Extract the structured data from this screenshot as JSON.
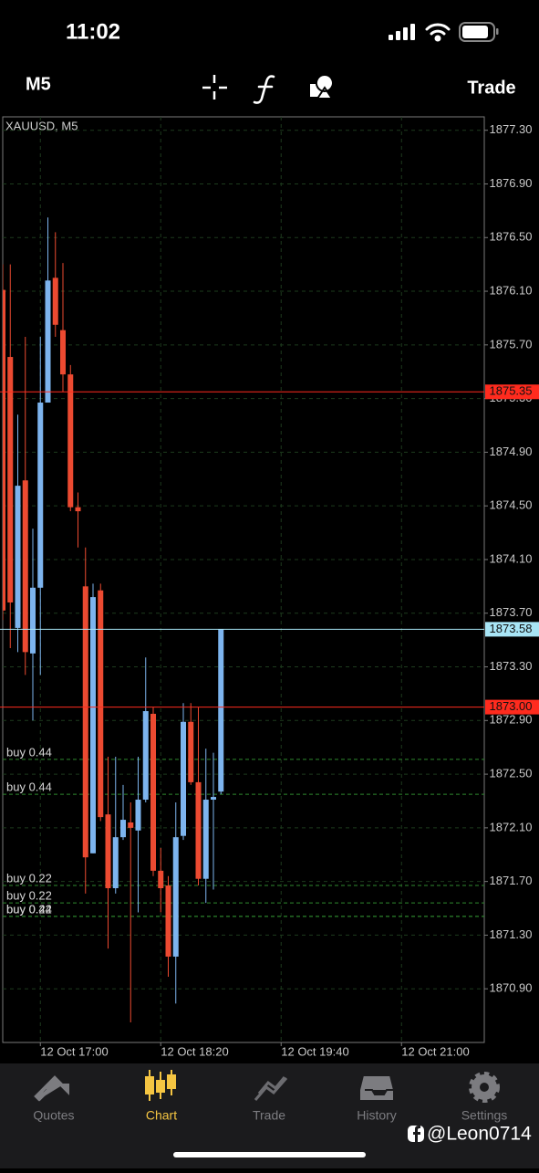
{
  "status_bar": {
    "time": "11:02"
  },
  "toolbar": {
    "timeframe": "M5",
    "trade": "Trade"
  },
  "chart_data": {
    "type": "candlestick",
    "title": "XAUUSD, M5",
    "categories": [
      null,
      null,
      null,
      null,
      null,
      "12 Oct 17:00",
      null,
      null,
      null,
      null,
      null,
      null,
      null,
      null,
      null,
      null,
      null,
      null,
      null,
      null,
      null,
      "12 Oct 18:20",
      null,
      null,
      null,
      null,
      null,
      null,
      null,
      null,
      null,
      null,
      null,
      null,
      null,
      null,
      null,
      "12 Oct 19:40",
      null,
      null,
      null,
      null,
      null,
      null,
      null,
      null,
      null,
      null,
      null,
      null,
      null,
      null,
      null,
      "12 Oct 21:00",
      null,
      null,
      null,
      null,
      null,
      null,
      null,
      null,
      null,
      null
    ],
    "open": [
      1876.11,
      1875.61,
      1873.59,
      1874.69,
      1873.4,
      1873.89,
      1875.27,
      1876.2,
      1875.81,
      1875.48,
      1874.49,
      1873.9,
      1871.91,
      1873.87,
      1872.2,
      1871.65,
      1872.03,
      1872.14,
      1872.08,
      1872.31,
      1872.95,
      1871.78,
      1871.67,
      1871.14,
      1872.04,
      1872.89,
      1872.44,
      1871.72,
      1872.31,
      1872.37,
      null,
      null,
      null,
      null,
      null,
      null,
      null,
      null,
      null,
      null,
      null,
      null,
      null,
      null,
      null,
      null,
      null,
      null,
      null,
      null,
      null,
      null,
      null,
      null,
      null,
      null,
      null,
      null,
      null,
      null,
      null,
      null,
      null,
      null
    ],
    "high": [
      1876.3,
      1876.3,
      1875.18,
      1875.76,
      1874.33,
      1875.76,
      1876.65,
      1876.54,
      1876.31,
      1875.55,
      1874.6,
      1874.19,
      1873.92,
      1873.92,
      1872.63,
      1872.63,
      1872.42,
      1872.29,
      1872.63,
      1873.37,
      1873.0,
      1871.95,
      1871.74,
      1872.29,
      1873.03,
      1873.03,
      1873.0,
      1872.69,
      1872.66,
      1873.58,
      null,
      null,
      null,
      null,
      null,
      null,
      null,
      null,
      null,
      null,
      null,
      null,
      null,
      null,
      null,
      null,
      null,
      null,
      null,
      null,
      null,
      null,
      null,
      null,
      null,
      null,
      null,
      null,
      null,
      null,
      null,
      null,
      null,
      null
    ],
    "low": [
      1873.65,
      1873.44,
      1873.41,
      1873.24,
      1872.9,
      1873.24,
      1875.27,
      1875.76,
      1875.35,
      1874.46,
      1874.19,
      1871.61,
      1871.91,
      1872.15,
      1871.2,
      1871.61,
      1872.01,
      1870.65,
      1871.47,
      1872.29,
      1871.74,
      1871.47,
      1870.99,
      1870.79,
      1872.01,
      1872.42,
      1871.67,
      1871.54,
      1871.64,
      1872.35,
      null,
      null,
      null,
      null,
      null,
      null,
      null,
      null,
      null,
      null,
      null,
      null,
      null,
      null,
      null,
      null,
      null,
      null,
      null,
      null,
      null,
      null,
      null,
      null,
      null,
      null,
      null,
      null,
      null,
      null,
      null,
      null,
      null,
      null
    ],
    "close": [
      1873.72,
      1873.78,
      1874.65,
      1873.41,
      1873.89,
      1875.27,
      1876.18,
      1875.85,
      1875.48,
      1874.49,
      1874.46,
      1871.88,
      1873.82,
      1872.18,
      1871.65,
      1872.03,
      1872.16,
      1872.1,
      1872.31,
      1872.97,
      1871.78,
      1871.65,
      1871.14,
      1872.03,
      1872.89,
      1872.44,
      1871.72,
      1872.31,
      1872.33,
      1873.58,
      null,
      null,
      null,
      null,
      null,
      null,
      null,
      null,
      null,
      null,
      null,
      null,
      null,
      null,
      null,
      null,
      null,
      null,
      null,
      null,
      null,
      null,
      null,
      null,
      null,
      null,
      null,
      null,
      null,
      null,
      null,
      null,
      null,
      null
    ],
    "up_color": "#7db4ee",
    "down_color": "#ec4a31",
    "ylim": [
      1870.5,
      1877.4
    ],
    "yticks": [
      {
        "value": 1877.3,
        "label": "1877.30"
      },
      {
        "value": 1876.9,
        "label": "1876.90"
      },
      {
        "value": 1876.5,
        "label": "1876.50"
      },
      {
        "value": 1876.1,
        "label": "1876.10"
      },
      {
        "value": 1875.7,
        "label": "1875.70"
      },
      {
        "value": 1875.3,
        "label": "1875.30"
      },
      {
        "value": 1874.9,
        "label": "1874.90"
      },
      {
        "value": 1874.5,
        "label": "1874.50"
      },
      {
        "value": 1874.1,
        "label": "1874.10"
      },
      {
        "value": 1873.7,
        "label": "1873.70"
      },
      {
        "value": 1873.3,
        "label": "1873.30"
      },
      {
        "value": 1872.9,
        "label": "1872.90"
      },
      {
        "value": 1872.5,
        "label": "1872.50"
      },
      {
        "value": 1872.1,
        "label": "1872.10"
      },
      {
        "value": 1871.7,
        "label": "1871.70"
      },
      {
        "value": 1871.3,
        "label": "1871.30"
      },
      {
        "value": 1870.9,
        "label": "1870.90"
      }
    ],
    "grid": true,
    "levels": [
      {
        "value": 1875.35,
        "label": "1875.35",
        "color": "#ff2b1e"
      },
      {
        "value": 1873.58,
        "label": "1873.58",
        "color": "#a8e5f6"
      },
      {
        "value": 1873.0,
        "label": "1873.00",
        "color": "#ff2b1e"
      }
    ],
    "orders": [
      {
        "label": "buy 0.44",
        "value": 1872.61
      },
      {
        "label": "buy 0.44",
        "value": 1872.35
      },
      {
        "label": "buy 0.22",
        "value": 1871.67
      },
      {
        "label": "buy 0.22",
        "value": 1871.54
      },
      {
        "label": "buy 0.22",
        "value": 1871.44
      },
      {
        "label": "buy 0.44",
        "value": 1871.44
      }
    ],
    "order_color": "#2f8a2f"
  },
  "tab_bar": {
    "tabs": [
      "Quotes",
      "Chart",
      "Trade",
      "History",
      "Settings"
    ],
    "active": 1
  },
  "watermark": "@Leon0714"
}
